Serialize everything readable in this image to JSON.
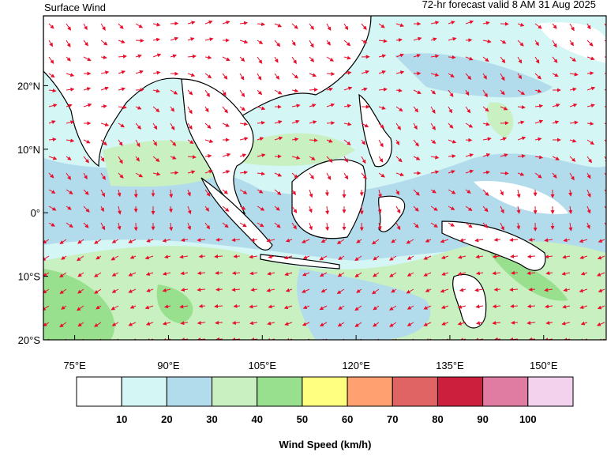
{
  "map": {
    "title": "Surface Wind",
    "subtitle": "72-hr forecast valid 8 AM 31 Aug 2025",
    "lonlim": [
      70,
      160
    ],
    "latlim": [
      -20,
      31
    ],
    "lon_ticks": [
      {
        "value": 75,
        "label": "75°E"
      },
      {
        "value": 90,
        "label": "90°E"
      },
      {
        "value": 105,
        "label": "105°E"
      },
      {
        "value": 120,
        "label": "120°E"
      },
      {
        "value": 135,
        "label": "135°E"
      },
      {
        "value": 150,
        "label": "150°E"
      }
    ],
    "lat_ticks": [
      {
        "value": 20,
        "label": "20°N"
      },
      {
        "value": 10,
        "label": "10°N"
      },
      {
        "value": 0,
        "label": "0°"
      },
      {
        "value": -10,
        "label": "10°S"
      },
      {
        "value": -20,
        "label": "20°S"
      }
    ]
  },
  "colorbar": {
    "label": "Wind Speed (km/h)",
    "colors": [
      "#ffffff",
      "#d4f6f4",
      "#b2dcec",
      "#c8f0c0",
      "#98e08e",
      "#ffff80",
      "#ffa070",
      "#e06464",
      "#cc1f3e",
      "#e07ba2",
      "#f2d2ec"
    ],
    "ticks": [
      10,
      20,
      30,
      40,
      50,
      60,
      70,
      80,
      90,
      100
    ]
  }
}
